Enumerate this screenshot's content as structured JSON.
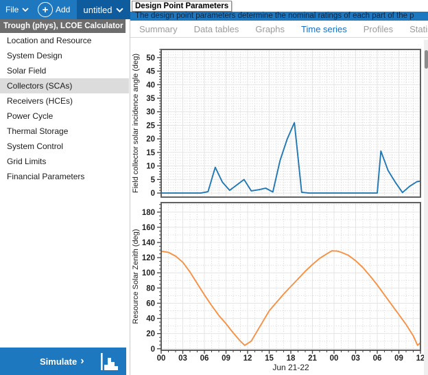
{
  "topbar": {
    "file_label": "File",
    "add_label": "Add",
    "case_name": "untitled"
  },
  "header": {
    "tooltip_title": "Design Point Parameters",
    "description": "The design point parameters determine the nominal ratings of each part of the p"
  },
  "tabs": {
    "items": [
      "Summary",
      "Data tables",
      "Graphs",
      "Time series",
      "Profiles",
      "Statistics"
    ],
    "active": "Time series"
  },
  "sidebar": {
    "header": "Trough (phys), LCOE Calculator",
    "items": [
      "Location and Resource",
      "System Design",
      "Solar Field",
      "Collectors (SCAs)",
      "Receivers (HCEs)",
      "Power Cycle",
      "Thermal Storage",
      "System Control",
      "Grid Limits",
      "Financial Parameters"
    ],
    "selected": "Collectors (SCAs)"
  },
  "simulate": {
    "label": "Simulate",
    "arrow": "›"
  },
  "colors": {
    "topbar_blue": "#1d78bf",
    "case_tab_blue": "#0e5c9e",
    "active_tab_blue": "#176fc1",
    "sidebar_header_bg": "#6d6d6d",
    "selected_item_bg": "#dcdcdc",
    "line_blue": "#1f77b4",
    "line_orange": "#f79043"
  },
  "chart_data": [
    {
      "type": "line",
      "name": "field-collector-solar-incidence-angle",
      "ylabel": "Field collector solar incidence angle (deg)",
      "xlabel": "",
      "color": "#1f77b4",
      "ylim": [
        -1.5,
        53
      ],
      "yticks": [
        0,
        5,
        10,
        15,
        20,
        25,
        30,
        35,
        40,
        45,
        50
      ],
      "y_minor_step": 1,
      "y_minor_tick": 1,
      "xlim": [
        0,
        36
      ],
      "xticks": [
        0,
        3,
        6,
        9,
        12,
        15,
        18,
        21,
        24,
        27,
        30,
        33,
        36
      ],
      "xticklabels": [
        "00",
        "03",
        "06",
        "09",
        "12",
        "15",
        "18",
        "21",
        "00",
        "03",
        "06",
        "09",
        "12"
      ],
      "x_minor_step": 1,
      "show_x_labels": false,
      "x": [
        0,
        0.5,
        1.5,
        2.5,
        3.5,
        4.5,
        5.5,
        6.5,
        7.5,
        8.5,
        9.5,
        10.5,
        11.5,
        12.5,
        13.5,
        14.5,
        15.5,
        16.5,
        17.5,
        18.5,
        19.5,
        20.5,
        21.5,
        22.5,
        23.5,
        24.5,
        25.5,
        26.5,
        27.5,
        28.5,
        29.5,
        30,
        30.5,
        31.5,
        32.5,
        33.5,
        34.5,
        35.5,
        36
      ],
      "values": [
        0,
        0,
        0,
        0,
        0,
        0,
        0,
        0.5,
        9.5,
        4,
        1,
        3,
        5,
        0.8,
        1.2,
        1.8,
        0.4,
        12,
        20,
        26,
        0.3,
        0,
        0,
        0,
        0,
        0,
        0,
        0,
        0,
        0,
        0,
        0,
        15.5,
        8.3,
        4,
        0.2,
        2.5,
        4.2,
        4.4
      ]
    },
    {
      "type": "line",
      "name": "resource-solar-zenith",
      "ylabel": "Resource Solar Zenith (deg)",
      "xlabel": "Jun 21-22",
      "color": "#f79043",
      "ylim": [
        -2,
        192.5
      ],
      "yticks": [
        0,
        20,
        40,
        60,
        80,
        100,
        120,
        140,
        160,
        180
      ],
      "y_minor_step": 10,
      "y_minor_tick": 5,
      "xlim": [
        0,
        36
      ],
      "xticks": [
        0,
        3,
        6,
        9,
        12,
        15,
        18,
        21,
        24,
        27,
        30,
        33,
        36
      ],
      "xticklabels": [
        "00",
        "03",
        "06",
        "09",
        "12",
        "15",
        "18",
        "21",
        "00",
        "03",
        "06",
        "09",
        "12"
      ],
      "x_minor_step": 1,
      "show_x_labels": true,
      "x": [
        0,
        1,
        2,
        3,
        4,
        5,
        6,
        7,
        8,
        9,
        10,
        11,
        11.6,
        12.5,
        13,
        14,
        15,
        16,
        17,
        18,
        19,
        20,
        21,
        22,
        23,
        23.7,
        24.5,
        25,
        26,
        27,
        28,
        29,
        30,
        31,
        32,
        33,
        34,
        35,
        35.6,
        36
      ],
      "values": [
        128.5,
        127,
        122,
        114,
        101,
        86,
        71,
        57,
        44,
        33,
        21,
        10,
        4.5,
        10,
        18,
        34,
        50,
        61,
        72,
        82,
        92,
        102,
        111,
        119,
        125,
        129,
        128.5,
        127,
        123,
        116,
        107,
        96,
        84,
        71,
        58,
        45,
        32,
        17,
        4.5,
        8
      ]
    }
  ]
}
